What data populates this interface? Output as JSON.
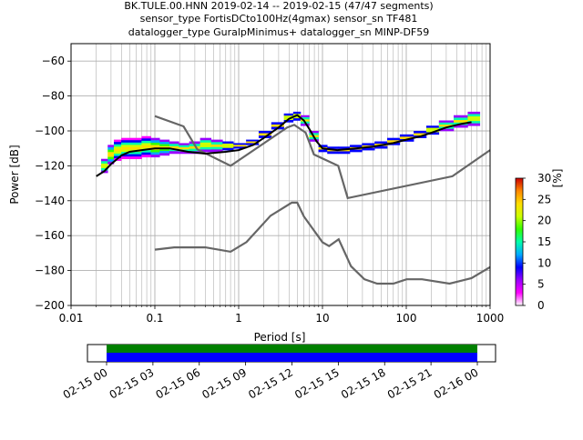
{
  "title": {
    "line1": "BK.TULE.00.HNN   2019-02-14 -- 2019-02-15  (47/47 segments)",
    "line2": "sensor_type FortisDCto100Hz(4gmax) sensor_sn TF481",
    "line3": "datalogger_type GuralpMinimus+ datalogger_sn MINP-DF59"
  },
  "chart_data": {
    "type": "heatmap",
    "subtype": "probabilistic-power-spectral-density",
    "xlabel": "Period [s]",
    "ylabel": "Power [dB]",
    "xscale": "log",
    "xlim": [
      0.01,
      1000
    ],
    "ylim": [
      -200,
      -50
    ],
    "x_ticks": [
      {
        "v": 0.01,
        "label": "0.01"
      },
      {
        "v": 0.1,
        "label": "0.1"
      },
      {
        "v": 1,
        "label": "1"
      },
      {
        "v": 10,
        "label": "10"
      },
      {
        "v": 100,
        "label": "100"
      },
      {
        "v": 1000,
        "label": "1000"
      }
    ],
    "y_ticks": [
      {
        "v": -60,
        "label": "−60"
      },
      {
        "v": -80,
        "label": "−80"
      },
      {
        "v": -100,
        "label": "−100"
      },
      {
        "v": -120,
        "label": "−120"
      },
      {
        "v": -140,
        "label": "−140"
      },
      {
        "v": -160,
        "label": "−160"
      },
      {
        "v": -180,
        "label": "−180"
      },
      {
        "v": -200,
        "label": "−200"
      }
    ],
    "grid": true,
    "colorbar": {
      "label": "[%]",
      "min": 0,
      "max": 30,
      "ticks": [
        {
          "v": 0,
          "label": "0"
        },
        {
          "v": 5,
          "label": "5"
        },
        {
          "v": 10,
          "label": "10"
        },
        {
          "v": 15,
          "label": "15"
        },
        {
          "v": 20,
          "label": "20"
        },
        {
          "v": 25,
          "label": "25"
        },
        {
          "v": 30,
          "label": "30"
        }
      ],
      "colors": [
        "#ffffff",
        "#ff00ff",
        "#9900ff",
        "#0000ff",
        "#00aaff",
        "#00ffaa",
        "#33ff00",
        "#ccff00",
        "#ffdd00",
        "#ff8800",
        "#cc0000"
      ]
    },
    "density": [
      {
        "x": 0.025,
        "ymin": -124,
        "ymax": -116
      },
      {
        "x": 0.03,
        "ymin": -119,
        "ymax": -108
      },
      {
        "x": 0.035,
        "ymin": -117,
        "ymax": -105
      },
      {
        "x": 0.045,
        "ymin": -116,
        "ymax": -104
      },
      {
        "x": 0.06,
        "ymin": -116,
        "ymax": -104
      },
      {
        "x": 0.08,
        "ymin": -115,
        "ymax": -103
      },
      {
        "x": 0.1,
        "ymin": -115,
        "ymax": -104
      },
      {
        "x": 0.13,
        "ymin": -114,
        "ymax": -105
      },
      {
        "x": 0.17,
        "ymin": -113,
        "ymax": -106
      },
      {
        "x": 0.22,
        "ymin": -113,
        "ymax": -107
      },
      {
        "x": 0.3,
        "ymin": -113,
        "ymax": -106
      },
      {
        "x": 0.4,
        "ymin": -112,
        "ymax": -104
      },
      {
        "x": 0.55,
        "ymin": -112,
        "ymax": -105
      },
      {
        "x": 0.75,
        "ymin": -111,
        "ymax": -106
      },
      {
        "x": 1.0,
        "ymin": -110,
        "ymax": -107
      },
      {
        "x": 1.5,
        "ymin": -108,
        "ymax": -105
      },
      {
        "x": 2.0,
        "ymin": -104,
        "ymax": -100
      },
      {
        "x": 3.0,
        "ymin": -99,
        "ymax": -95
      },
      {
        "x": 4.0,
        "ymin": -95,
        "ymax": -90
      },
      {
        "x": 5.0,
        "ymin": -94,
        "ymax": -89
      },
      {
        "x": 6.0,
        "ymin": -97,
        "ymax": -91
      },
      {
        "x": 8.0,
        "ymin": -106,
        "ymax": -100
      },
      {
        "x": 10,
        "ymin": -112,
        "ymax": -108
      },
      {
        "x": 13,
        "ymin": -113,
        "ymax": -109
      },
      {
        "x": 18,
        "ymin": -113,
        "ymax": -109
      },
      {
        "x": 25,
        "ymin": -112,
        "ymax": -108
      },
      {
        "x": 35,
        "ymin": -111,
        "ymax": -107
      },
      {
        "x": 50,
        "ymin": -110,
        "ymax": -106
      },
      {
        "x": 70,
        "ymin": -108,
        "ymax": -104
      },
      {
        "x": 100,
        "ymin": -106,
        "ymax": -102
      },
      {
        "x": 150,
        "ymin": -104,
        "ymax": -100
      },
      {
        "x": 200,
        "ymin": -102,
        "ymax": -97
      },
      {
        "x": 300,
        "ymin": -100,
        "ymax": -94
      },
      {
        "x": 450,
        "ymin": -98,
        "ymax": -91
      },
      {
        "x": 650,
        "ymin": -97,
        "ymax": -89
      }
    ],
    "mode_curve": [
      [
        0.02,
        -126
      ],
      [
        0.025,
        -123
      ],
      [
        0.03,
        -119
      ],
      [
        0.04,
        -114
      ],
      [
        0.05,
        -112
      ],
      [
        0.07,
        -111
      ],
      [
        0.1,
        -110
      ],
      [
        0.15,
        -110
      ],
      [
        0.25,
        -112
      ],
      [
        0.4,
        -113
      ],
      [
        0.7,
        -112
      ],
      [
        1.0,
        -111
      ],
      [
        1.5,
        -108
      ],
      [
        2.0,
        -104
      ],
      [
        3.0,
        -98
      ],
      [
        4.0,
        -93
      ],
      [
        5.0,
        -91
      ],
      [
        6.0,
        -94
      ],
      [
        7.0,
        -99
      ],
      [
        8.5,
        -106
      ],
      [
        10,
        -110
      ],
      [
        15,
        -111
      ],
      [
        25,
        -110
      ],
      [
        40,
        -109
      ],
      [
        70,
        -107
      ],
      [
        100,
        -105
      ],
      [
        150,
        -103
      ],
      [
        200,
        -101
      ],
      [
        300,
        -98
      ],
      [
        450,
        -96
      ],
      [
        600,
        -95
      ]
    ],
    "nhnm": [
      [
        0.1,
        -91.5
      ],
      [
        0.22,
        -97.4
      ],
      [
        0.32,
        -110.5
      ],
      [
        0.8,
        -120
      ],
      [
        3.8,
        -98
      ],
      [
        4.6,
        -96.5
      ],
      [
        6.3,
        -101
      ],
      [
        7.9,
        -113.5
      ],
      [
        15.4,
        -120
      ],
      [
        20,
        -138.5
      ],
      [
        354.8,
        -126
      ],
      [
        1000,
        -111
      ]
    ],
    "nlnm": [
      [
        0.1,
        -168
      ],
      [
        0.17,
        -166.7
      ],
      [
        0.4,
        -166.7
      ],
      [
        0.8,
        -169.2
      ],
      [
        1.24,
        -163.7
      ],
      [
        2.4,
        -148.6
      ],
      [
        4.3,
        -141.1
      ],
      [
        5.0,
        -141.1
      ],
      [
        6.0,
        -149
      ],
      [
        10,
        -163.8
      ],
      [
        12,
        -166
      ],
      [
        15.6,
        -162.1
      ],
      [
        21.9,
        -177.5
      ],
      [
        31.6,
        -185
      ],
      [
        45,
        -187.5
      ],
      [
        70,
        -187.5
      ],
      [
        101,
        -185
      ],
      [
        154,
        -185
      ],
      [
        328,
        -187.5
      ],
      [
        600,
        -184.4
      ],
      [
        1000,
        -178
      ]
    ],
    "time_axis": {
      "start": "02-15 00",
      "end": "02-16 00",
      "ticks": [
        "02-15 00",
        "02-15 03",
        "02-15 06",
        "02-15 09",
        "02-15 12",
        "02-15 15",
        "02-15 18",
        "02-15 21",
        "02-16 00"
      ],
      "coverage_colors": [
        "#008000",
        "#0000ff"
      ]
    }
  }
}
